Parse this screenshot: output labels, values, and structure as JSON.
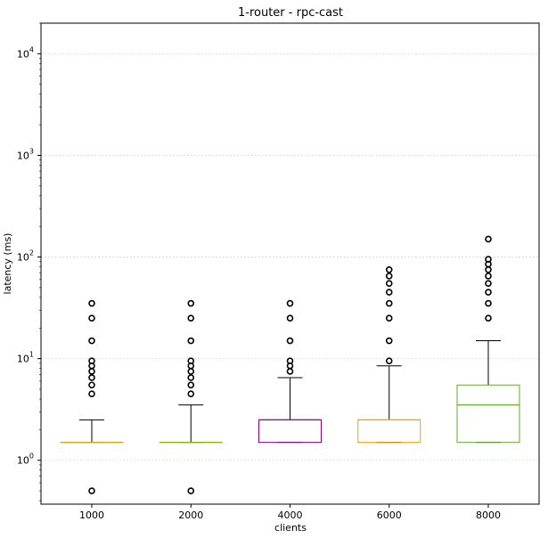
{
  "chart_data": {
    "type": "boxplot",
    "title": "1-router - rpc-cast",
    "xlabel": "clients",
    "ylabel": "latency (ms)",
    "yscale": "log",
    "ylim": [
      0.37,
      20000
    ],
    "grid": "y-major dotted",
    "y_ticks": [
      {
        "value": 1,
        "base": "10",
        "exp": "0"
      },
      {
        "value": 10,
        "base": "10",
        "exp": "1"
      },
      {
        "value": 100,
        "base": "10",
        "exp": "2"
      },
      {
        "value": 1000,
        "base": "10",
        "exp": "3"
      },
      {
        "value": 10000,
        "base": "10",
        "exp": "4"
      }
    ],
    "categories": [
      "1000",
      "2000",
      "4000",
      "6000",
      "8000"
    ],
    "series": [
      {
        "name": "1000",
        "color": "#d4a017",
        "q1": 1.5,
        "median": 1.5,
        "q3": 1.5,
        "whisker_low": 1.5,
        "whisker_high": 2.5,
        "outliers": [
          0.5,
          4.5,
          5.5,
          6.5,
          7.5,
          8.5,
          9.5,
          15,
          25,
          35
        ]
      },
      {
        "name": "2000",
        "color": "#7fb800",
        "q1": 1.5,
        "median": 1.5,
        "q3": 1.5,
        "whisker_low": 1.5,
        "whisker_high": 3.5,
        "outliers": [
          0.5,
          4.5,
          5.5,
          6.5,
          7.5,
          8.5,
          9.5,
          15,
          25,
          35
        ]
      },
      {
        "name": "4000",
        "color": "#8b008b",
        "q1": 1.5,
        "median": 2.5,
        "q3": 2.5,
        "whisker_low": 1.5,
        "whisker_high": 6.5,
        "outliers": [
          7.5,
          8.5,
          9.5,
          15,
          25,
          35
        ]
      },
      {
        "name": "6000",
        "color": "#ff9900",
        "q1": 1.5,
        "median": 2.5,
        "q3": 2.5,
        "whisker_low": 1.5,
        "whisker_high": 8.5,
        "outliers": [
          9.5,
          15,
          25,
          35,
          45,
          55,
          65,
          75
        ]
      },
      {
        "name": "8000",
        "color": "#66aa33",
        "q1": 1.5,
        "median": 3.5,
        "q3": 5.5,
        "whisker_low": 1.5,
        "whisker_high": 15,
        "outliers": [
          25,
          35,
          45,
          55,
          65,
          75,
          85,
          95,
          150
        ]
      }
    ]
  }
}
